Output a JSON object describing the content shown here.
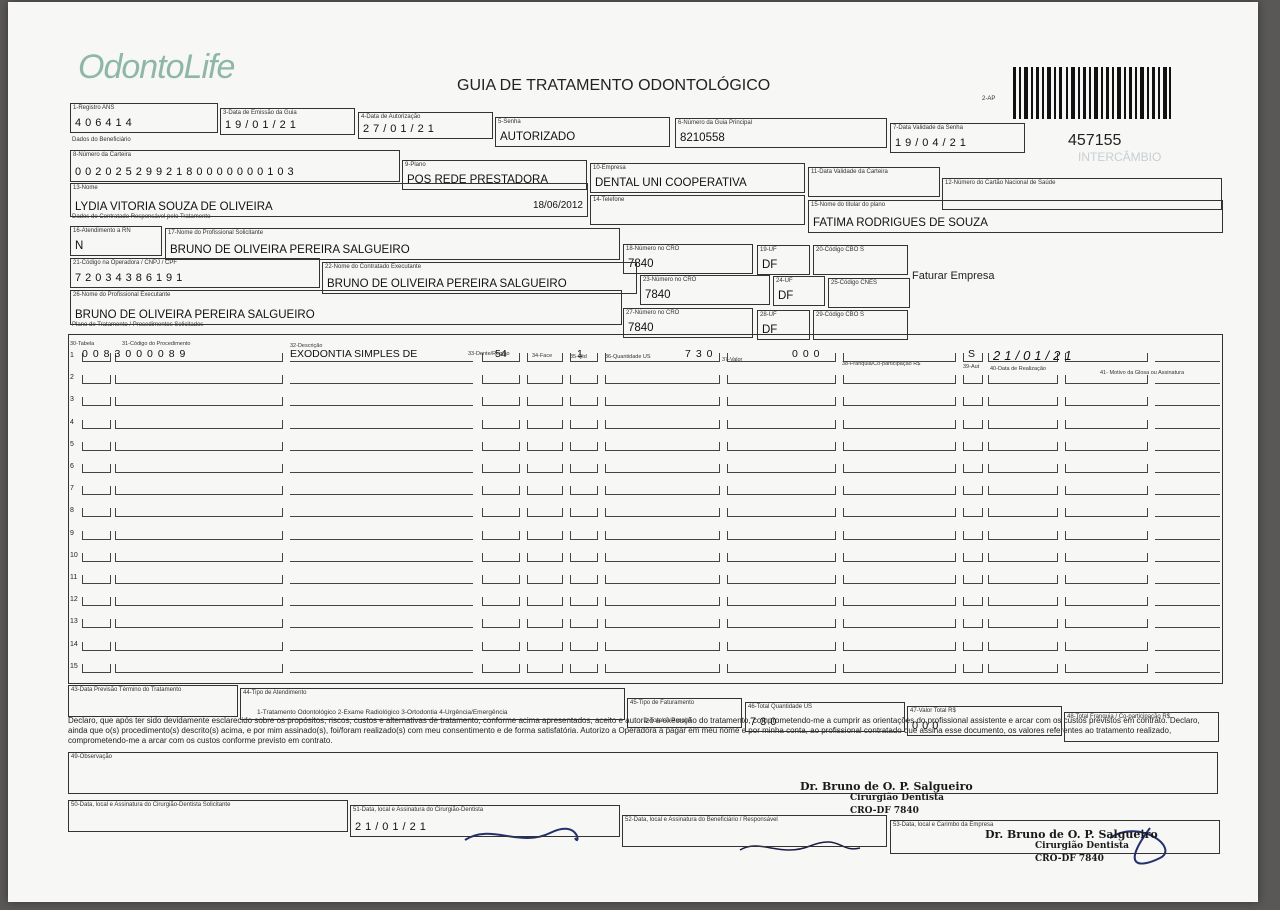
{
  "header": {
    "logo": "OdontoLife",
    "title": "GUIA DE TRATAMENTO ODONTOLÓGICO",
    "code": "2-AP",
    "guide_number": "457155",
    "exchange": "INTERCÂMBIO"
  },
  "sections": [
    "Dados do Beneficiário",
    "Dados do Contratado Responsável pelo Tratamento",
    "Plano de Tratamento / Procedimentos Solicitados"
  ],
  "fields": [
    {
      "label": "1-Registro ANS",
      "value": "406414"
    },
    {
      "label": "3-Data de Emissão da Guia",
      "value": "19/01/21"
    },
    {
      "label": "4-Data de Autorização",
      "value": "27/01/21"
    },
    {
      "label": "5-Senha",
      "value": "AUTORIZADO"
    },
    {
      "label": "6-Número da Guia Principal",
      "value": "8210558"
    },
    {
      "label": "7-Data Validade da Senha",
      "value": "19/04/21"
    },
    {
      "label": "8-Número da Carteira",
      "value": "0020252992180000000103"
    },
    {
      "label": "9-Plano",
      "value": "POS REDE PRESTADORA"
    },
    {
      "label": "10-Empresa",
      "value": "DENTAL UNI COOPERATIVA"
    },
    {
      "label": "11-Data Validade da Carteira"
    },
    {
      "label": "12-Número do Cartão Nacional de Saúde"
    },
    {
      "label": "13-Nome",
      "value": "LYDIA VITORIA SOUZA DE OLIVEIRA",
      "extra": "18/06/2012"
    },
    {
      "label": "14-Telefone"
    },
    {
      "label": "15-Nome do titular do plano",
      "value": "FATIMA RODRIGUES DE SOUZA"
    },
    {
      "label": "16-Atendimento a RN",
      "value": "N"
    },
    {
      "label": "17-Nome do Profissional Solicitante",
      "value": "BRUNO DE OLIVEIRA PEREIRA SALGUEIRO"
    },
    {
      "label": "18-Número no CRO",
      "value": "7840"
    },
    {
      "label": "19-UF",
      "value": "DF"
    },
    {
      "label": "20-Código CBO S"
    },
    {
      "label": "21-Código na Operadora / CNPJ / CPF",
      "value": "72034386191"
    },
    {
      "label": "22-Nome do Contratado Executante",
      "value": "BRUNO DE OLIVEIRA PEREIRA SALGUEIRO"
    },
    {
      "label": "23-Número no CRO",
      "value": "7840"
    },
    {
      "label": "24-UF",
      "value": "DF"
    },
    {
      "label": "25-Código CNES"
    },
    {
      "label": "26-Nome do Profissional Executante",
      "value": "BRUNO DE OLIVEIRA PEREIRA SALGUEIRO"
    },
    {
      "label": "27-Número no CRO",
      "value": "7840"
    },
    {
      "label": "28-UF",
      "value": "DF"
    },
    {
      "label": "29-Código CBO S"
    },
    {
      "label": "43-Data Previsão Término do Tratamento"
    },
    {
      "label": "44-Tipo de Atendimento",
      "options": "1-Tratamento Odontológico  2-Exame Radiológico  3-Ortodontia  4-Urgência/Emergência"
    },
    {
      "label": "45-Tipo de Faturamento",
      "options": "1-Total  2-Parcial"
    },
    {
      "label": "46-Total Quantidade US",
      "value": "730"
    },
    {
      "label": "47-Valor Total R$",
      "value": "000"
    },
    {
      "label": "48-Total Franquia / Co-participação R$"
    },
    {
      "label": "49-Observação"
    },
    {
      "label": "50-Data, local e Assinatura do Cirurgião-Dentista Solicitante"
    },
    {
      "label": "51-Data, local e Assinatura do Cirurgião-Dentista",
      "value": "21/01/21"
    },
    {
      "label": "52-Data, local e Assinatura do Beneficiário / Responsável"
    },
    {
      "label": "53-Data, local e Carimbo da Empresa"
    }
  ],
  "note": "Faturar Empresa",
  "table": {
    "headers": [
      "30-Tabela",
      "31-Código do Procedimento",
      "32-Descrição",
      "33-Dente/Região",
      "34-Face",
      "35-Qtd",
      "36-Quantidade US",
      "37-Valor",
      "38-Franquia/Co-participação R$",
      "39-Aut",
      "40-Data de Realização",
      "41- Motivo da Glosa ou Assinatura"
    ],
    "rows": [
      {
        "number": "1",
        "code": "0083000089",
        "description": "EXODONTIA SIMPLES DE",
        "tooth": "54",
        "qty": "1",
        "us": "730",
        "value": "000",
        "aut": "S",
        "date": "21/01/21"
      },
      {
        "number": "2"
      },
      {
        "number": "3"
      },
      {
        "number": "4"
      },
      {
        "number": "5"
      },
      {
        "number": "6"
      },
      {
        "number": "7"
      },
      {
        "number": "8"
      },
      {
        "number": "9"
      },
      {
        "number": "10"
      },
      {
        "number": "11"
      },
      {
        "number": "12"
      },
      {
        "number": "13"
      },
      {
        "number": "14"
      },
      {
        "number": "15"
      }
    ]
  },
  "declaration": "Declaro, que após ter sido devidamente esclarecido sobre os propósitos, riscos, custos e alternativas de tratamento, conforme acima apresentados, aceito e autorizo a execução do tratamento, comprometendo-me a cumprir as orientações do profissional assistente e arcar com os custos previstos em contrato. Declaro, ainda que o(s) procedimento(s) descrito(s) acima, e por mim assinado(s), foi/foram realizado(s) com meu consentimento e de forma satisfatória. Autorizo a Operadora a pagar em meu nome e por minha conta, ao profissional contratado que assina esse documento, os valores referentes ao tratamento realizado, comprometendo-me a arcar com os custos conforme previsto em contrato.",
  "stamp": [
    "Dr. Bruno de O. P. Salgueiro",
    "Cirurgião Dentista",
    "CRO-DF 7840"
  ]
}
